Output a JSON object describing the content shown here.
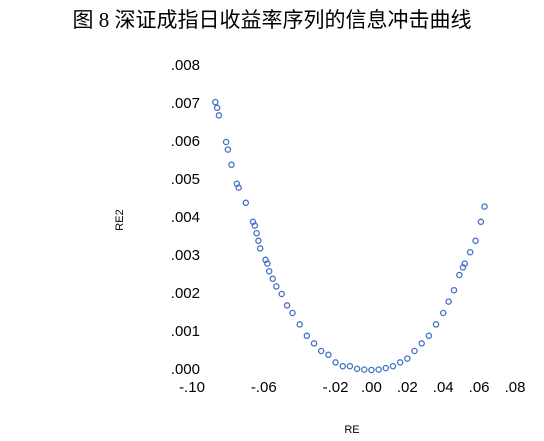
{
  "chart_data": {
    "type": "scatter",
    "title": "图 8 深证成指日收益率序列的信息冲击曲线",
    "x_label": "RE",
    "y_label": "RE2",
    "x": [
      -0.087,
      -0.086,
      -0.085,
      -0.081,
      -0.08,
      -0.078,
      -0.075,
      -0.074,
      -0.07,
      -0.066,
      -0.065,
      -0.064,
      -0.063,
      -0.062,
      -0.059,
      -0.058,
      -0.057,
      -0.055,
      -0.053,
      -0.05,
      -0.047,
      -0.044,
      -0.04,
      -0.036,
      -0.032,
      -0.028,
      -0.024,
      -0.02,
      -0.016,
      -0.012,
      -0.008,
      -0.004,
      0,
      0.004,
      0.008,
      0.012,
      0.016,
      0.02,
      0.024,
      0.028,
      0.032,
      0.036,
      0.04,
      0.043,
      0.046,
      0.049,
      0.051,
      0.052,
      0.055,
      0.058,
      0.061,
      0.063
    ],
    "series": [
      {
        "color": "#4472c4",
        "values": [
          0.00705,
          0.0069,
          0.0067,
          0.006,
          0.0058,
          0.0054,
          0.0049,
          0.0048,
          0.0044,
          0.0039,
          0.0038,
          0.0036,
          0.0034,
          0.0032,
          0.0029,
          0.0028,
          0.0026,
          0.0024,
          0.0022,
          0.002,
          0.0017,
          0.0015,
          0.0012,
          0.0009,
          0.0007,
          0.0005,
          0.0004,
          0.0002,
          0.0001,
          0.0001,
          3e-05,
          1e-05,
          0,
          1e-05,
          5e-05,
          0.0001,
          0.0002,
          0.0003,
          0.0005,
          0.0007,
          0.0009,
          0.0012,
          0.0015,
          0.0018,
          0.0021,
          0.0025,
          0.0027,
          0.0028,
          0.0031,
          0.0034,
          0.0039,
          0.0043
        ]
      }
    ],
    "xlim": [
      -0.1,
      0.08
    ],
    "xticks": [
      {
        "value": -0.1,
        "label": "-.10"
      },
      {
        "value": -0.06,
        "label": "-.06"
      },
      {
        "value": -0.02,
        "label": "-.02"
      },
      {
        "value": 0,
        "label": ".00"
      },
      {
        "value": 0.02,
        "label": ".02"
      },
      {
        "value": 0.04,
        "label": ".04"
      },
      {
        "value": 0.06,
        "label": ".06"
      },
      {
        "value": 0.08,
        "label": ".08"
      }
    ],
    "ylim": [
      0,
      0.008
    ],
    "yticks": [
      {
        "value": 0,
        "label": ".000"
      },
      {
        "value": 0.001,
        "label": ".001"
      },
      {
        "value": 0.002,
        "label": ".002"
      },
      {
        "value": 0.003,
        "label": ".003"
      },
      {
        "value": 0.004,
        "label": ".004"
      },
      {
        "value": 0.005,
        "label": ".005"
      },
      {
        "value": 0.006,
        "label": ".006"
      },
      {
        "value": 0.007,
        "label": ".007"
      },
      {
        "value": 0.008,
        "label": ".008"
      }
    ]
  }
}
